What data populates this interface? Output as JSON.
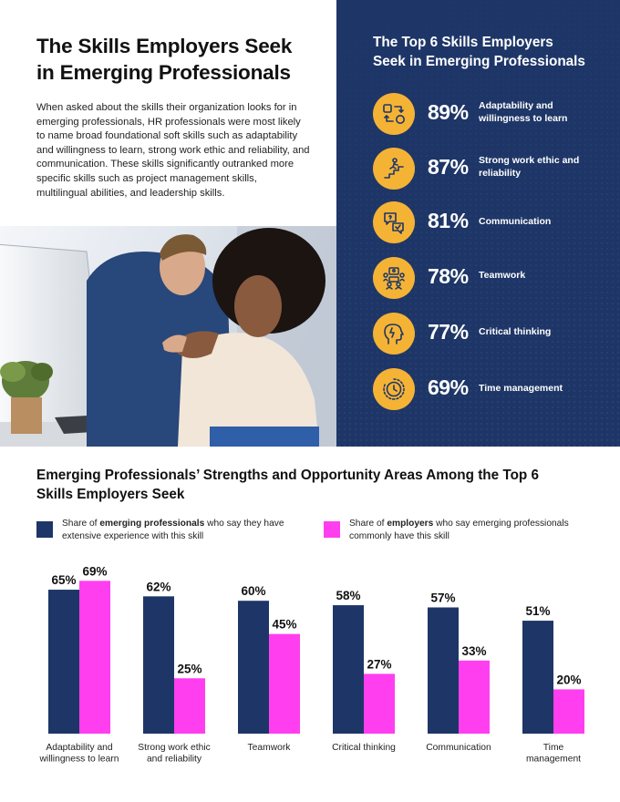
{
  "intro": {
    "title_line1": "The Skills Employers Seek",
    "title_line2": "in Emerging Professionals",
    "body": "When asked about the skills their organization looks for in emerging professionals, HR professionals were most likely to name broad foundational soft skills such as adaptability and willingness to learn, strong work ethic and reliability, and communication. These skills significantly outranked more specific skills such as project management skills, multilingual abilities, and leadership skills."
  },
  "panel": {
    "title_line1": "The Top 6 Skills Employers",
    "title_line2": "Seek in Emerging Professionals",
    "skills": [
      {
        "pct": "89%",
        "label": "Adaptability and willingness to learn",
        "icon": "adaptability-icon"
      },
      {
        "pct": "87%",
        "label": "Strong work ethic and reliability",
        "icon": "stairs-climber-icon"
      },
      {
        "pct": "81%",
        "label": "Communication",
        "icon": "chat-bubbles-icon"
      },
      {
        "pct": "78%",
        "label": "Teamwork",
        "icon": "team-meeting-icon"
      },
      {
        "pct": "77%",
        "label": "Critical thinking",
        "icon": "head-lightbulb-icon"
      },
      {
        "pct": "69%",
        "label": "Time management",
        "icon": "clock-icon"
      }
    ]
  },
  "legend": {
    "navy": {
      "prefix": "Share of ",
      "bold": "emerging professionals",
      "suffix": " who say they have extensive experience with this skill"
    },
    "pink": {
      "prefix": "Share of ",
      "bold": "employers",
      "suffix": " who say emerging professionals commonly have this skill"
    }
  },
  "colors": {
    "navy": "#1e3667",
    "pink": "#ff3ef0",
    "gold": "#f5b335"
  },
  "chart_data": {
    "type": "bar",
    "title": "Emerging Professionals’ Strengths and Opportunity Areas Among the Top 6 Skills Employers Seek",
    "categories": [
      [
        "Adaptability and",
        "willingness to learn"
      ],
      [
        "Strong work ethic",
        "and reliability"
      ],
      [
        "Teamwork"
      ],
      [
        "Critical thinking"
      ],
      [
        "Communication"
      ],
      [
        "Time",
        "management"
      ]
    ],
    "series": [
      {
        "name": "Share of emerging professionals who say they have extensive experience with this skill",
        "color": "#1e3667",
        "values": [
          65,
          62,
          60,
          58,
          57,
          51
        ]
      },
      {
        "name": "Share of employers who say emerging professionals commonly have this skill",
        "color": "#ff3ef0",
        "values": [
          69,
          25,
          45,
          27,
          33,
          20
        ]
      }
    ],
    "value_suffix": "%",
    "ylim": [
      0,
      100
    ],
    "grid": false,
    "legend_position": "top"
  }
}
